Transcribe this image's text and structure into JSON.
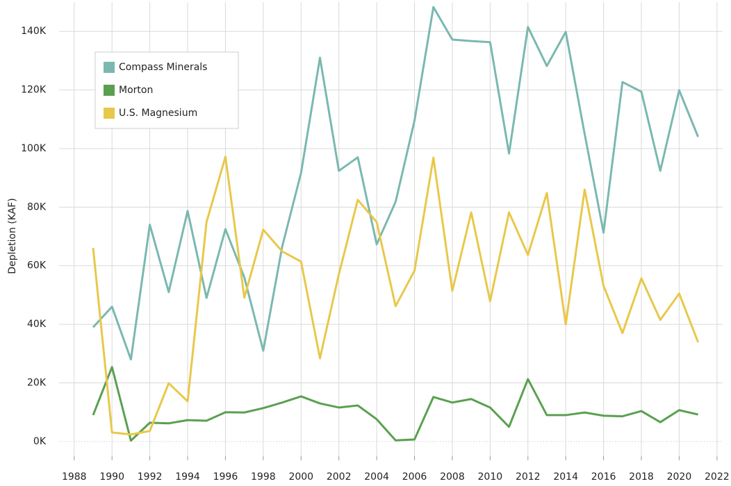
{
  "chart_data": {
    "type": "line",
    "ylabel": "Depletion (KAF)",
    "x": [
      1989,
      1990,
      1991,
      1992,
      1993,
      1994,
      1995,
      1996,
      1997,
      1998,
      1999,
      2000,
      2001,
      2002,
      2003,
      2004,
      2005,
      2006,
      2007,
      2008,
      2009,
      2010,
      2011,
      2012,
      2013,
      2014,
      2015,
      2016,
      2017,
      2018,
      2019,
      2020,
      2021
    ],
    "series": [
      {
        "name": "Compass Minerals",
        "color": "#7ab8b0",
        "values": [
          39000,
          46000,
          28000,
          74000,
          51000,
          78700,
          49000,
          72500,
          56000,
          31000,
          66500,
          91700,
          131000,
          92400,
          97000,
          67300,
          81800,
          109500,
          148300,
          137200,
          136700,
          136300,
          98300,
          141500,
          128200,
          139800,
          105000,
          71300,
          122700,
          119400,
          92400,
          119900,
          104000
        ]
      },
      {
        "name": "Morton",
        "color": "#5aa050",
        "values": [
          9000,
          25400,
          300,
          6400,
          6200,
          7300,
          7100,
          10000,
          9900,
          11400,
          13300,
          15400,
          13000,
          11600,
          12300,
          7600,
          400,
          700,
          15200,
          13300,
          14500,
          11600,
          5000,
          21300,
          9000,
          9000,
          9900,
          8800,
          8600,
          10400,
          6600,
          10700,
          9200
        ]
      },
      {
        "name": "U.S. Magnesium",
        "color": "#e8c84a",
        "values": [
          66100,
          3100,
          2400,
          3600,
          19900,
          13700,
          74900,
          97200,
          49100,
          72300,
          64900,
          61400,
          28400,
          57100,
          82500,
          74900,
          46200,
          58300,
          96900,
          51400,
          78200,
          47900,
          78200,
          63700,
          84800,
          40000,
          86000,
          53100,
          37000,
          55700,
          41500,
          50500,
          33900
        ]
      }
    ],
    "xlim": [
      1987.2,
      2022.3
    ],
    "xticks": [
      1988,
      1990,
      1992,
      1994,
      1996,
      1998,
      2000,
      2002,
      2004,
      2006,
      2008,
      2010,
      2012,
      2014,
      2016,
      2018,
      2020,
      2022
    ],
    "ylim": [
      -5000,
      150000
    ],
    "yticks": [
      {
        "value": 0,
        "label": "0K"
      },
      {
        "value": 20000,
        "label": "20K"
      },
      {
        "value": 40000,
        "label": "40K"
      },
      {
        "value": 60000,
        "label": "60K"
      },
      {
        "value": 80000,
        "label": "80K"
      },
      {
        "value": 100000,
        "label": "100K"
      },
      {
        "value": 120000,
        "label": "120K"
      },
      {
        "value": 140000,
        "label": "140K"
      }
    ],
    "grid": true,
    "legend": "upper left"
  }
}
